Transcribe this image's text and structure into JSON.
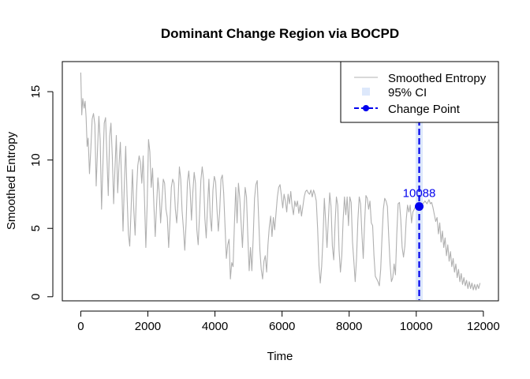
{
  "chart_data": {
    "type": "line",
    "title": "Dominant Change Region via BOCPD",
    "xlabel": "Time",
    "ylabel": "Smoothed Entropy",
    "xlim": [
      -550,
      12450
    ],
    "ylim": [
      -0.3,
      17.2
    ],
    "x_ticks": [
      0,
      2000,
      4000,
      6000,
      8000,
      10000,
      12000
    ],
    "x_tick_labels": [
      "0",
      "2000",
      "4000",
      "6000",
      "8000",
      "10000",
      "12000"
    ],
    "y_ticks": [
      0,
      5,
      10,
      15
    ],
    "y_tick_labels": [
      "0",
      "5",
      "10",
      "15"
    ],
    "grid": false,
    "legend_position": "top-right",
    "series": [
      {
        "name": "Smoothed Entropy",
        "color": "#b0b0b0",
        "points": [
          [
            0,
            16.4
          ],
          [
            30,
            13.3
          ],
          [
            60,
            14.5
          ],
          [
            100,
            13.8
          ],
          [
            130,
            14.3
          ],
          [
            160,
            13.1
          ],
          [
            190,
            11.0
          ],
          [
            220,
            11.6
          ],
          [
            260,
            9.0
          ],
          [
            300,
            10.8
          ],
          [
            340,
            13.0
          ],
          [
            380,
            13.4
          ],
          [
            420,
            12.6
          ],
          [
            460,
            8.1
          ],
          [
            500,
            10.8
          ],
          [
            540,
            13.2
          ],
          [
            580,
            11.4
          ],
          [
            620,
            6.4
          ],
          [
            660,
            9.6
          ],
          [
            700,
            12.7
          ],
          [
            740,
            13.1
          ],
          [
            780,
            10.2
          ],
          [
            820,
            7.4
          ],
          [
            860,
            11.7
          ],
          [
            900,
            12.7
          ],
          [
            940,
            10.3
          ],
          [
            980,
            6.8
          ],
          [
            1020,
            9.4
          ],
          [
            1060,
            11.8
          ],
          [
            1100,
            7.6
          ],
          [
            1140,
            9.6
          ],
          [
            1180,
            11.3
          ],
          [
            1220,
            8.3
          ],
          [
            1260,
            4.8
          ],
          [
            1300,
            8.3
          ],
          [
            1340,
            11.0
          ],
          [
            1380,
            7.4
          ],
          [
            1420,
            4.6
          ],
          [
            1460,
            3.7
          ],
          [
            1500,
            6.4
          ],
          [
            1540,
            9.3
          ],
          [
            1580,
            6.4
          ],
          [
            1620,
            4.5
          ],
          [
            1660,
            7.6
          ],
          [
            1700,
            9.6
          ],
          [
            1740,
            10.3
          ],
          [
            1780,
            9.8
          ],
          [
            1820,
            8.3
          ],
          [
            1860,
            10.3
          ],
          [
            1900,
            7.1
          ],
          [
            1940,
            3.6
          ],
          [
            1980,
            6.8
          ],
          [
            2020,
            11.5
          ],
          [
            2060,
            10.6
          ],
          [
            2100,
            8.0
          ],
          [
            2140,
            9.4
          ],
          [
            2180,
            6.7
          ],
          [
            2220,
            4.4
          ],
          [
            2260,
            6.7
          ],
          [
            2300,
            8.7
          ],
          [
            2340,
            7.6
          ],
          [
            2380,
            5.4
          ],
          [
            2420,
            7.0
          ],
          [
            2460,
            8.6
          ],
          [
            2500,
            8.3
          ],
          [
            2540,
            6.4
          ],
          [
            2580,
            5.8
          ],
          [
            2620,
            3.6
          ],
          [
            2660,
            5.6
          ],
          [
            2700,
            8.0
          ],
          [
            2740,
            8.6
          ],
          [
            2780,
            8.3
          ],
          [
            2820,
            6.4
          ],
          [
            2860,
            5.4
          ],
          [
            2900,
            7.0
          ],
          [
            2940,
            9.5
          ],
          [
            2980,
            8.6
          ],
          [
            3020,
            6.3
          ],
          [
            3060,
            5.0
          ],
          [
            3100,
            3.4
          ],
          [
            3140,
            5.4
          ],
          [
            3180,
            8.4
          ],
          [
            3220,
            9.2
          ],
          [
            3260,
            7.8
          ],
          [
            3300,
            5.6
          ],
          [
            3340,
            7.6
          ],
          [
            3380,
            9.1
          ],
          [
            3420,
            8.3
          ],
          [
            3460,
            4.9
          ],
          [
            3500,
            3.8
          ],
          [
            3540,
            6.0
          ],
          [
            3580,
            8.5
          ],
          [
            3620,
            9.5
          ],
          [
            3660,
            8.6
          ],
          [
            3700,
            5.7
          ],
          [
            3740,
            4.3
          ],
          [
            3780,
            6.7
          ],
          [
            3820,
            8.6
          ],
          [
            3860,
            5.8
          ],
          [
            3900,
            4.8
          ],
          [
            3940,
            7.8
          ],
          [
            3980,
            8.8
          ],
          [
            4020,
            8.4
          ],
          [
            4060,
            6.4
          ],
          [
            4100,
            4.8
          ],
          [
            4140,
            6.2
          ],
          [
            4180,
            8.6
          ],
          [
            4220,
            8.9
          ],
          [
            4260,
            7.6
          ],
          [
            4300,
            5.2
          ],
          [
            4340,
            2.8
          ],
          [
            4380,
            3.8
          ],
          [
            4420,
            4.2
          ],
          [
            4460,
            1.3
          ],
          [
            4500,
            2.5
          ],
          [
            4540,
            2.2
          ],
          [
            4580,
            5.3
          ],
          [
            4620,
            8.0
          ],
          [
            4660,
            5.4
          ],
          [
            4700,
            8.3
          ],
          [
            4740,
            7.2
          ],
          [
            4780,
            5.4
          ],
          [
            4820,
            3.6
          ],
          [
            4860,
            6.0
          ],
          [
            4900,
            8.0
          ],
          [
            4940,
            7.3
          ],
          [
            4980,
            4.4
          ],
          [
            5020,
            1.9
          ],
          [
            5060,
            3.6
          ],
          [
            5100,
            1.9
          ],
          [
            5140,
            4.3
          ],
          [
            5180,
            7.2
          ],
          [
            5220,
            8.2
          ],
          [
            5260,
            8.5
          ],
          [
            5300,
            5.9
          ],
          [
            5340,
            3.4
          ],
          [
            5380,
            2.0
          ],
          [
            5420,
            1.3
          ],
          [
            5460,
            2.6
          ],
          [
            5500,
            3.0
          ],
          [
            5540,
            1.8
          ],
          [
            5580,
            3.8
          ],
          [
            5620,
            5.1
          ],
          [
            5660,
            5.9
          ],
          [
            5700,
            4.4
          ],
          [
            5740,
            5.8
          ],
          [
            5780,
            4.9
          ],
          [
            5820,
            6.1
          ],
          [
            5860,
            7.3
          ],
          [
            5900,
            8.0
          ],
          [
            5940,
            8.2
          ],
          [
            5980,
            7.4
          ],
          [
            6020,
            6.5
          ],
          [
            6060,
            7.5
          ],
          [
            6100,
            7.0
          ],
          [
            6140,
            6.2
          ],
          [
            6180,
            7.5
          ],
          [
            6220,
            6.8
          ],
          [
            6260,
            7.7
          ],
          [
            6300,
            6.6
          ],
          [
            6340,
            6.0
          ],
          [
            6380,
            7.0
          ],
          [
            6420,
            6.6
          ],
          [
            6460,
            7.0
          ],
          [
            6500,
            6.1
          ],
          [
            6540,
            6.7
          ],
          [
            6580,
            5.9
          ],
          [
            6620,
            6.6
          ],
          [
            6660,
            7.3
          ],
          [
            6700,
            7.7
          ],
          [
            6740,
            7.8
          ],
          [
            6780,
            7.6
          ],
          [
            6820,
            7.5
          ],
          [
            6860,
            7.8
          ],
          [
            6900,
            7.3
          ],
          [
            6940,
            7.8
          ],
          [
            6980,
            7.5
          ],
          [
            7020,
            7.0
          ],
          [
            7060,
            5.0
          ],
          [
            7100,
            2.3
          ],
          [
            7140,
            1.0
          ],
          [
            7180,
            2.2
          ],
          [
            7220,
            4.3
          ],
          [
            7260,
            7.2
          ],
          [
            7300,
            5.5
          ],
          [
            7340,
            3.6
          ],
          [
            7380,
            5.6
          ],
          [
            7420,
            7.6
          ],
          [
            7460,
            6.6
          ],
          [
            7500,
            3.7
          ],
          [
            7540,
            2.7
          ],
          [
            7580,
            5.3
          ],
          [
            7620,
            7.3
          ],
          [
            7660,
            6.7
          ],
          [
            7700,
            3.4
          ],
          [
            7740,
            1.8
          ],
          [
            7780,
            3.0
          ],
          [
            7820,
            5.6
          ],
          [
            7860,
            7.3
          ],
          [
            7900,
            6.0
          ],
          [
            7940,
            7.3
          ],
          [
            7980,
            5.2
          ],
          [
            8020,
            7.3
          ],
          [
            8060,
            6.9
          ],
          [
            8100,
            4.0
          ],
          [
            8140,
            2.6
          ],
          [
            8180,
            1.1
          ],
          [
            8220,
            2.8
          ],
          [
            8260,
            5.6
          ],
          [
            8300,
            7.3
          ],
          [
            8340,
            6.8
          ],
          [
            8380,
            4.6
          ],
          [
            8420,
            2.8
          ],
          [
            8460,
            5.4
          ],
          [
            8500,
            7.4
          ],
          [
            8540,
            7.2
          ],
          [
            8580,
            6.4
          ],
          [
            8620,
            7.0
          ],
          [
            8660,
            5.4
          ],
          [
            8700,
            5.2
          ],
          [
            8740,
            3.0
          ],
          [
            8780,
            1.5
          ],
          [
            8820,
            1.3
          ],
          [
            8860,
            1.1
          ],
          [
            8900,
            0.8
          ],
          [
            8940,
            2.0
          ],
          [
            8980,
            4.4
          ],
          [
            9020,
            6.4
          ],
          [
            9060,
            7.2
          ],
          [
            9100,
            7.0
          ],
          [
            9140,
            6.6
          ],
          [
            9180,
            4.4
          ],
          [
            9220,
            2.4
          ],
          [
            9260,
            1.1
          ],
          [
            9300,
            1.4
          ],
          [
            9340,
            2.4
          ],
          [
            9380,
            1.6
          ],
          [
            9420,
            4.6
          ],
          [
            9460,
            6.8
          ],
          [
            9500,
            6.9
          ],
          [
            9540,
            5.6
          ],
          [
            9580,
            3.6
          ],
          [
            9620,
            2.9
          ],
          [
            9660,
            3.7
          ],
          [
            9700,
            5.6
          ],
          [
            9740,
            6.7
          ],
          [
            9780,
            6.2
          ],
          [
            9820,
            6.7
          ],
          [
            9860,
            5.4
          ],
          [
            9900,
            6.2
          ],
          [
            9940,
            6.4
          ],
          [
            9980,
            6.6
          ],
          [
            10020,
            6.7
          ],
          [
            10088,
            6.6
          ],
          [
            10140,
            6.8
          ],
          [
            10200,
            6.8
          ],
          [
            10260,
            7.0
          ],
          [
            10320,
            6.8
          ],
          [
            10380,
            7.1
          ],
          [
            10420,
            6.8
          ],
          [
            10460,
            6.9
          ],
          [
            10500,
            6.5
          ],
          [
            10540,
            6.0
          ],
          [
            10580,
            5.5
          ],
          [
            10620,
            5.8
          ],
          [
            10660,
            4.6
          ],
          [
            10700,
            5.4
          ],
          [
            10740,
            4.0
          ],
          [
            10780,
            4.8
          ],
          [
            10820,
            3.6
          ],
          [
            10860,
            4.3
          ],
          [
            10900,
            3.0
          ],
          [
            10940,
            3.8
          ],
          [
            10980,
            2.6
          ],
          [
            11020,
            3.3
          ],
          [
            11060,
            2.2
          ],
          [
            11100,
            2.8
          ],
          [
            11140,
            1.8
          ],
          [
            11180,
            2.4
          ],
          [
            11220,
            1.4
          ],
          [
            11260,
            2.0
          ],
          [
            11300,
            1.1
          ],
          [
            11340,
            1.7
          ],
          [
            11380,
            0.9
          ],
          [
            11420,
            1.4
          ],
          [
            11460,
            0.8
          ],
          [
            11500,
            1.2
          ],
          [
            11540,
            0.6
          ],
          [
            11580,
            1.1
          ],
          [
            11620,
            0.6
          ],
          [
            11660,
            1.0
          ],
          [
            11700,
            0.5
          ],
          [
            11740,
            0.9
          ],
          [
            11780,
            0.5
          ],
          [
            11820,
            0.9
          ],
          [
            11860,
            0.6
          ],
          [
            11900,
            1.0
          ]
        ]
      }
    ],
    "ci": {
      "name": "95% CI",
      "color": "#dde8fb",
      "x_low": 9980,
      "x_high": 10195
    },
    "change_point": {
      "name": "Change Point",
      "x": 10088,
      "y": 6.6,
      "label": "10088",
      "color": "#0000ee"
    }
  }
}
